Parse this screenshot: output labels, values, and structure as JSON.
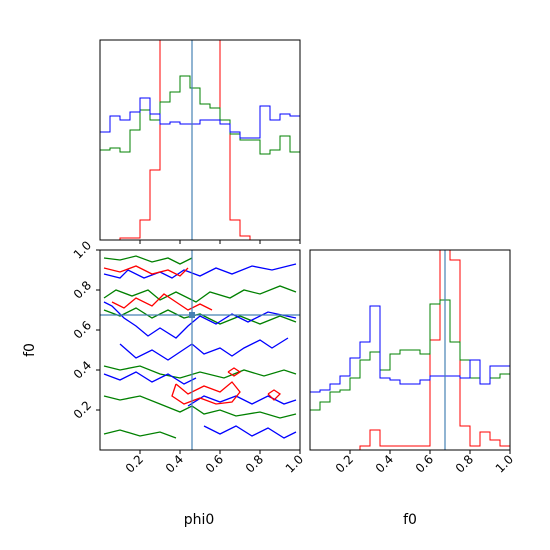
{
  "chart_data": {
    "type": "corner",
    "parameters": [
      "phi0",
      "f0"
    ],
    "truth": {
      "phi0": 0.46,
      "f0": 0.675
    },
    "series_colors": {
      "red": "#ff0000",
      "green": "#008000",
      "blue": "#0000ff",
      "truth": "#4682b4"
    },
    "axis_labels": {
      "x_bottom_left": "phi0",
      "x_bottom_right": "f0",
      "y_left": "f0"
    },
    "ticks": {
      "x": [
        "0.2",
        "0.4",
        "0.6",
        "0.8",
        "1.0"
      ],
      "y": [
        "0.2",
        "0.4",
        "0.6",
        "0.8",
        "1.0"
      ]
    },
    "hist_phi0": {
      "range": [
        0,
        1
      ],
      "bins": 20,
      "red": [
        0,
        0,
        0.01,
        0.01,
        0.1,
        0.35,
        1.0,
        1.0,
        1.0,
        1.0,
        1.0,
        1.0,
        0.6,
        0.1,
        0.02,
        0,
        0,
        0,
        0,
        0
      ],
      "green": [
        0.45,
        0.46,
        0.44,
        0.55,
        0.65,
        0.6,
        0.69,
        0.74,
        0.82,
        0.76,
        0.68,
        0.66,
        0.6,
        0.53,
        0.5,
        0.5,
        0.43,
        0.45,
        0.52,
        0.44
      ],
      "blue": [
        0.54,
        0.62,
        0.6,
        0.64,
        0.71,
        0.63,
        0.58,
        0.59,
        0.58,
        0.58,
        0.6,
        0.6,
        0.58,
        0.54,
        0.51,
        0.51,
        0.67,
        0.6,
        0.63,
        0.62
      ]
    },
    "hist_f0": {
      "range": [
        0,
        1
      ],
      "bins": 20,
      "red": [
        0,
        0,
        0,
        0,
        0,
        0.02,
        0.1,
        0.02,
        0.02,
        0.02,
        0.02,
        0.02,
        0.55,
        1.0,
        0.95,
        0.12,
        0.02,
        0.09,
        0.05,
        0.02
      ],
      "green": [
        0.2,
        0.24,
        0.29,
        0.3,
        0.36,
        0.45,
        0.49,
        0.4,
        0.48,
        0.5,
        0.5,
        0.48,
        0.73,
        0.75,
        0.54,
        0.45,
        0.36,
        0.33,
        0.36,
        0.38
      ],
      "blue": [
        0.29,
        0.3,
        0.33,
        0.37,
        0.46,
        0.54,
        0.72,
        0.36,
        0.35,
        0.33,
        0.33,
        0.35,
        0.37,
        0.37,
        0.37,
        0.36,
        0.45,
        0.33,
        0.42,
        0.42
      ]
    },
    "contours": [
      {
        "color": "green",
        "points": [
          [
            0.02,
            0.96
          ],
          [
            0.1,
            0.95
          ],
          [
            0.18,
            0.97
          ],
          [
            0.26,
            0.94
          ],
          [
            0.34,
            0.96
          ],
          [
            0.4,
            0.93
          ],
          [
            0.46,
            0.96
          ]
        ]
      },
      {
        "color": "green",
        "points": [
          [
            0.02,
            0.76
          ],
          [
            0.08,
            0.8
          ],
          [
            0.16,
            0.77
          ],
          [
            0.24,
            0.8
          ],
          [
            0.3,
            0.75
          ],
          [
            0.38,
            0.79
          ],
          [
            0.48,
            0.74
          ],
          [
            0.55,
            0.79
          ],
          [
            0.65,
            0.76
          ],
          [
            0.72,
            0.8
          ],
          [
            0.8,
            0.78
          ],
          [
            0.9,
            0.82
          ],
          [
            0.98,
            0.79
          ]
        ]
      },
      {
        "color": "green",
        "points": [
          [
            0.02,
            0.7
          ],
          [
            0.1,
            0.67
          ],
          [
            0.18,
            0.71
          ],
          [
            0.26,
            0.66
          ],
          [
            0.34,
            0.7
          ],
          [
            0.42,
            0.66
          ],
          [
            0.5,
            0.68
          ],
          [
            0.6,
            0.63
          ],
          [
            0.7,
            0.67
          ],
          [
            0.8,
            0.63
          ],
          [
            0.9,
            0.67
          ],
          [
            0.98,
            0.64
          ]
        ]
      },
      {
        "color": "green",
        "points": [
          [
            0.02,
            0.42
          ],
          [
            0.1,
            0.4
          ],
          [
            0.2,
            0.42
          ],
          [
            0.3,
            0.38
          ],
          [
            0.4,
            0.36
          ],
          [
            0.5,
            0.39
          ],
          [
            0.62,
            0.36
          ],
          [
            0.72,
            0.4
          ],
          [
            0.82,
            0.37
          ],
          [
            0.92,
            0.4
          ],
          [
            0.98,
            0.38
          ]
        ]
      },
      {
        "color": "green",
        "points": [
          [
            0.02,
            0.27
          ],
          [
            0.1,
            0.25
          ],
          [
            0.2,
            0.27
          ],
          [
            0.3,
            0.23
          ],
          [
            0.4,
            0.19
          ],
          [
            0.46,
            0.22
          ],
          [
            0.52,
            0.18
          ],
          [
            0.6,
            0.2
          ],
          [
            0.68,
            0.17
          ],
          [
            0.8,
            0.19
          ],
          [
            0.9,
            0.16
          ],
          [
            0.98,
            0.18
          ]
        ]
      },
      {
        "color": "green",
        "points": [
          [
            0.02,
            0.08
          ],
          [
            0.1,
            0.1
          ],
          [
            0.2,
            0.07
          ],
          [
            0.3,
            0.09
          ],
          [
            0.38,
            0.06
          ]
        ]
      },
      {
        "color": "blue",
        "points": [
          [
            0.02,
            0.88
          ],
          [
            0.1,
            0.86
          ],
          [
            0.14,
            0.9
          ],
          [
            0.22,
            0.86
          ],
          [
            0.3,
            0.89
          ],
          [
            0.36,
            0.86
          ],
          [
            0.42,
            0.9
          ],
          [
            0.5,
            0.87
          ],
          [
            0.58,
            0.91
          ],
          [
            0.66,
            0.88
          ],
          [
            0.76,
            0.92
          ],
          [
            0.86,
            0.9
          ],
          [
            0.98,
            0.93
          ]
        ]
      },
      {
        "color": "blue",
        "points": [
          [
            0.02,
            0.74
          ],
          [
            0.06,
            0.72
          ],
          [
            0.12,
            0.66
          ],
          [
            0.18,
            0.62
          ],
          [
            0.24,
            0.57
          ],
          [
            0.3,
            0.61
          ],
          [
            0.38,
            0.56
          ],
          [
            0.44,
            0.62
          ],
          [
            0.5,
            0.67
          ],
          [
            0.58,
            0.63
          ],
          [
            0.66,
            0.68
          ],
          [
            0.74,
            0.64
          ],
          [
            0.84,
            0.69
          ],
          [
            0.98,
            0.66
          ]
        ]
      },
      {
        "color": "blue",
        "points": [
          [
            0.1,
            0.53
          ],
          [
            0.18,
            0.46
          ],
          [
            0.26,
            0.5
          ],
          [
            0.34,
            0.45
          ],
          [
            0.4,
            0.49
          ],
          [
            0.46,
            0.53
          ],
          [
            0.52,
            0.48
          ],
          [
            0.6,
            0.51
          ],
          [
            0.66,
            0.47
          ],
          [
            0.72,
            0.51
          ],
          [
            0.8,
            0.55
          ],
          [
            0.86,
            0.51
          ],
          [
            0.94,
            0.56
          ]
        ]
      },
      {
        "color": "blue",
        "points": [
          [
            0.02,
            0.38
          ],
          [
            0.1,
            0.35
          ],
          [
            0.18,
            0.39
          ],
          [
            0.26,
            0.34
          ],
          [
            0.34,
            0.38
          ],
          [
            0.42,
            0.33
          ],
          [
            0.48,
            0.36
          ]
        ]
      },
      {
        "color": "blue",
        "points": [
          [
            0.44,
            0.22
          ],
          [
            0.52,
            0.27
          ],
          [
            0.6,
            0.24
          ],
          [
            0.68,
            0.27
          ],
          [
            0.76,
            0.23
          ],
          [
            0.84,
            0.27
          ],
          [
            0.92,
            0.23
          ],
          [
            0.98,
            0.25
          ]
        ]
      },
      {
        "color": "blue",
        "points": [
          [
            0.52,
            0.12
          ],
          [
            0.6,
            0.08
          ],
          [
            0.68,
            0.12
          ],
          [
            0.76,
            0.07
          ],
          [
            0.84,
            0.11
          ],
          [
            0.92,
            0.06
          ],
          [
            0.98,
            0.09
          ]
        ]
      },
      {
        "color": "red",
        "points": [
          [
            0.02,
            0.91
          ],
          [
            0.1,
            0.89
          ],
          [
            0.18,
            0.92
          ],
          [
            0.26,
            0.88
          ],
          [
            0.34,
            0.9
          ],
          [
            0.4,
            0.87
          ],
          [
            0.44,
            0.91
          ]
        ]
      },
      {
        "color": "red",
        "points": [
          [
            0.06,
            0.74
          ],
          [
            0.12,
            0.71
          ],
          [
            0.18,
            0.76
          ],
          [
            0.26,
            0.72
          ],
          [
            0.32,
            0.78
          ],
          [
            0.38,
            0.74
          ],
          [
            0.44,
            0.7
          ],
          [
            0.5,
            0.73
          ],
          [
            0.56,
            0.7
          ]
        ]
      },
      {
        "color": "red",
        "points": [
          [
            0.38,
            0.33
          ],
          [
            0.44,
            0.28
          ],
          [
            0.52,
            0.32
          ],
          [
            0.6,
            0.29
          ],
          [
            0.66,
            0.34
          ],
          [
            0.7,
            0.29
          ],
          [
            0.66,
            0.24
          ],
          [
            0.58,
            0.23
          ],
          [
            0.5,
            0.26
          ],
          [
            0.42,
            0.23
          ],
          [
            0.36,
            0.27
          ],
          [
            0.38,
            0.33
          ]
        ]
      },
      {
        "color": "red",
        "points": [
          [
            0.64,
            0.39
          ],
          [
            0.67,
            0.37
          ],
          [
            0.7,
            0.39
          ],
          [
            0.67,
            0.41
          ],
          [
            0.64,
            0.39
          ]
        ]
      },
      {
        "color": "red",
        "points": [
          [
            0.84,
            0.28
          ],
          [
            0.87,
            0.25
          ],
          [
            0.9,
            0.28
          ],
          [
            0.87,
            0.3
          ],
          [
            0.84,
            0.28
          ]
        ]
      }
    ]
  }
}
